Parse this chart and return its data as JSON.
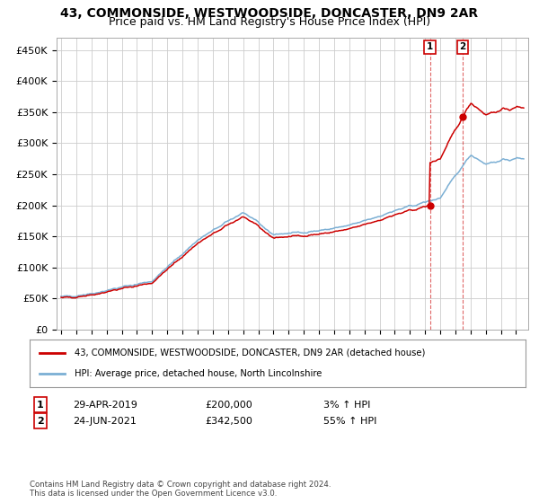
{
  "title": "43, COMMONSIDE, WESTWOODSIDE, DONCASTER, DN9 2AR",
  "subtitle": "Price paid vs. HM Land Registry's House Price Index (HPI)",
  "title_fontsize": 10,
  "subtitle_fontsize": 9,
  "ylabel_ticks": [
    "£0",
    "£50K",
    "£100K",
    "£150K",
    "£200K",
    "£250K",
    "£300K",
    "£350K",
    "£400K",
    "£450K"
  ],
  "ytick_values": [
    0,
    50000,
    100000,
    150000,
    200000,
    250000,
    300000,
    350000,
    400000,
    450000
  ],
  "ylim": [
    0,
    470000
  ],
  "xlim_start": 1994.7,
  "xlim_end": 2025.8,
  "hpi_color": "#7bafd4",
  "sale_color": "#cc0000",
  "sale1_x": 2019.32,
  "sale1_y": 200000,
  "sale2_x": 2021.48,
  "sale2_y": 342500,
  "legend_sale_label": "43, COMMONSIDE, WESTWOODSIDE, DONCASTER, DN9 2AR (detached house)",
  "legend_hpi_label": "HPI: Average price, detached house, North Lincolnshire",
  "annotation1_date": "29-APR-2019",
  "annotation1_price": "£200,000",
  "annotation1_hpi": "3% ↑ HPI",
  "annotation2_date": "24-JUN-2021",
  "annotation2_price": "£342,500",
  "annotation2_hpi": "55% ↑ HPI",
  "footer": "Contains HM Land Registry data © Crown copyright and database right 2024.\nThis data is licensed under the Open Government Licence v3.0.",
  "background_color": "#ffffff",
  "grid_color": "#cccccc"
}
